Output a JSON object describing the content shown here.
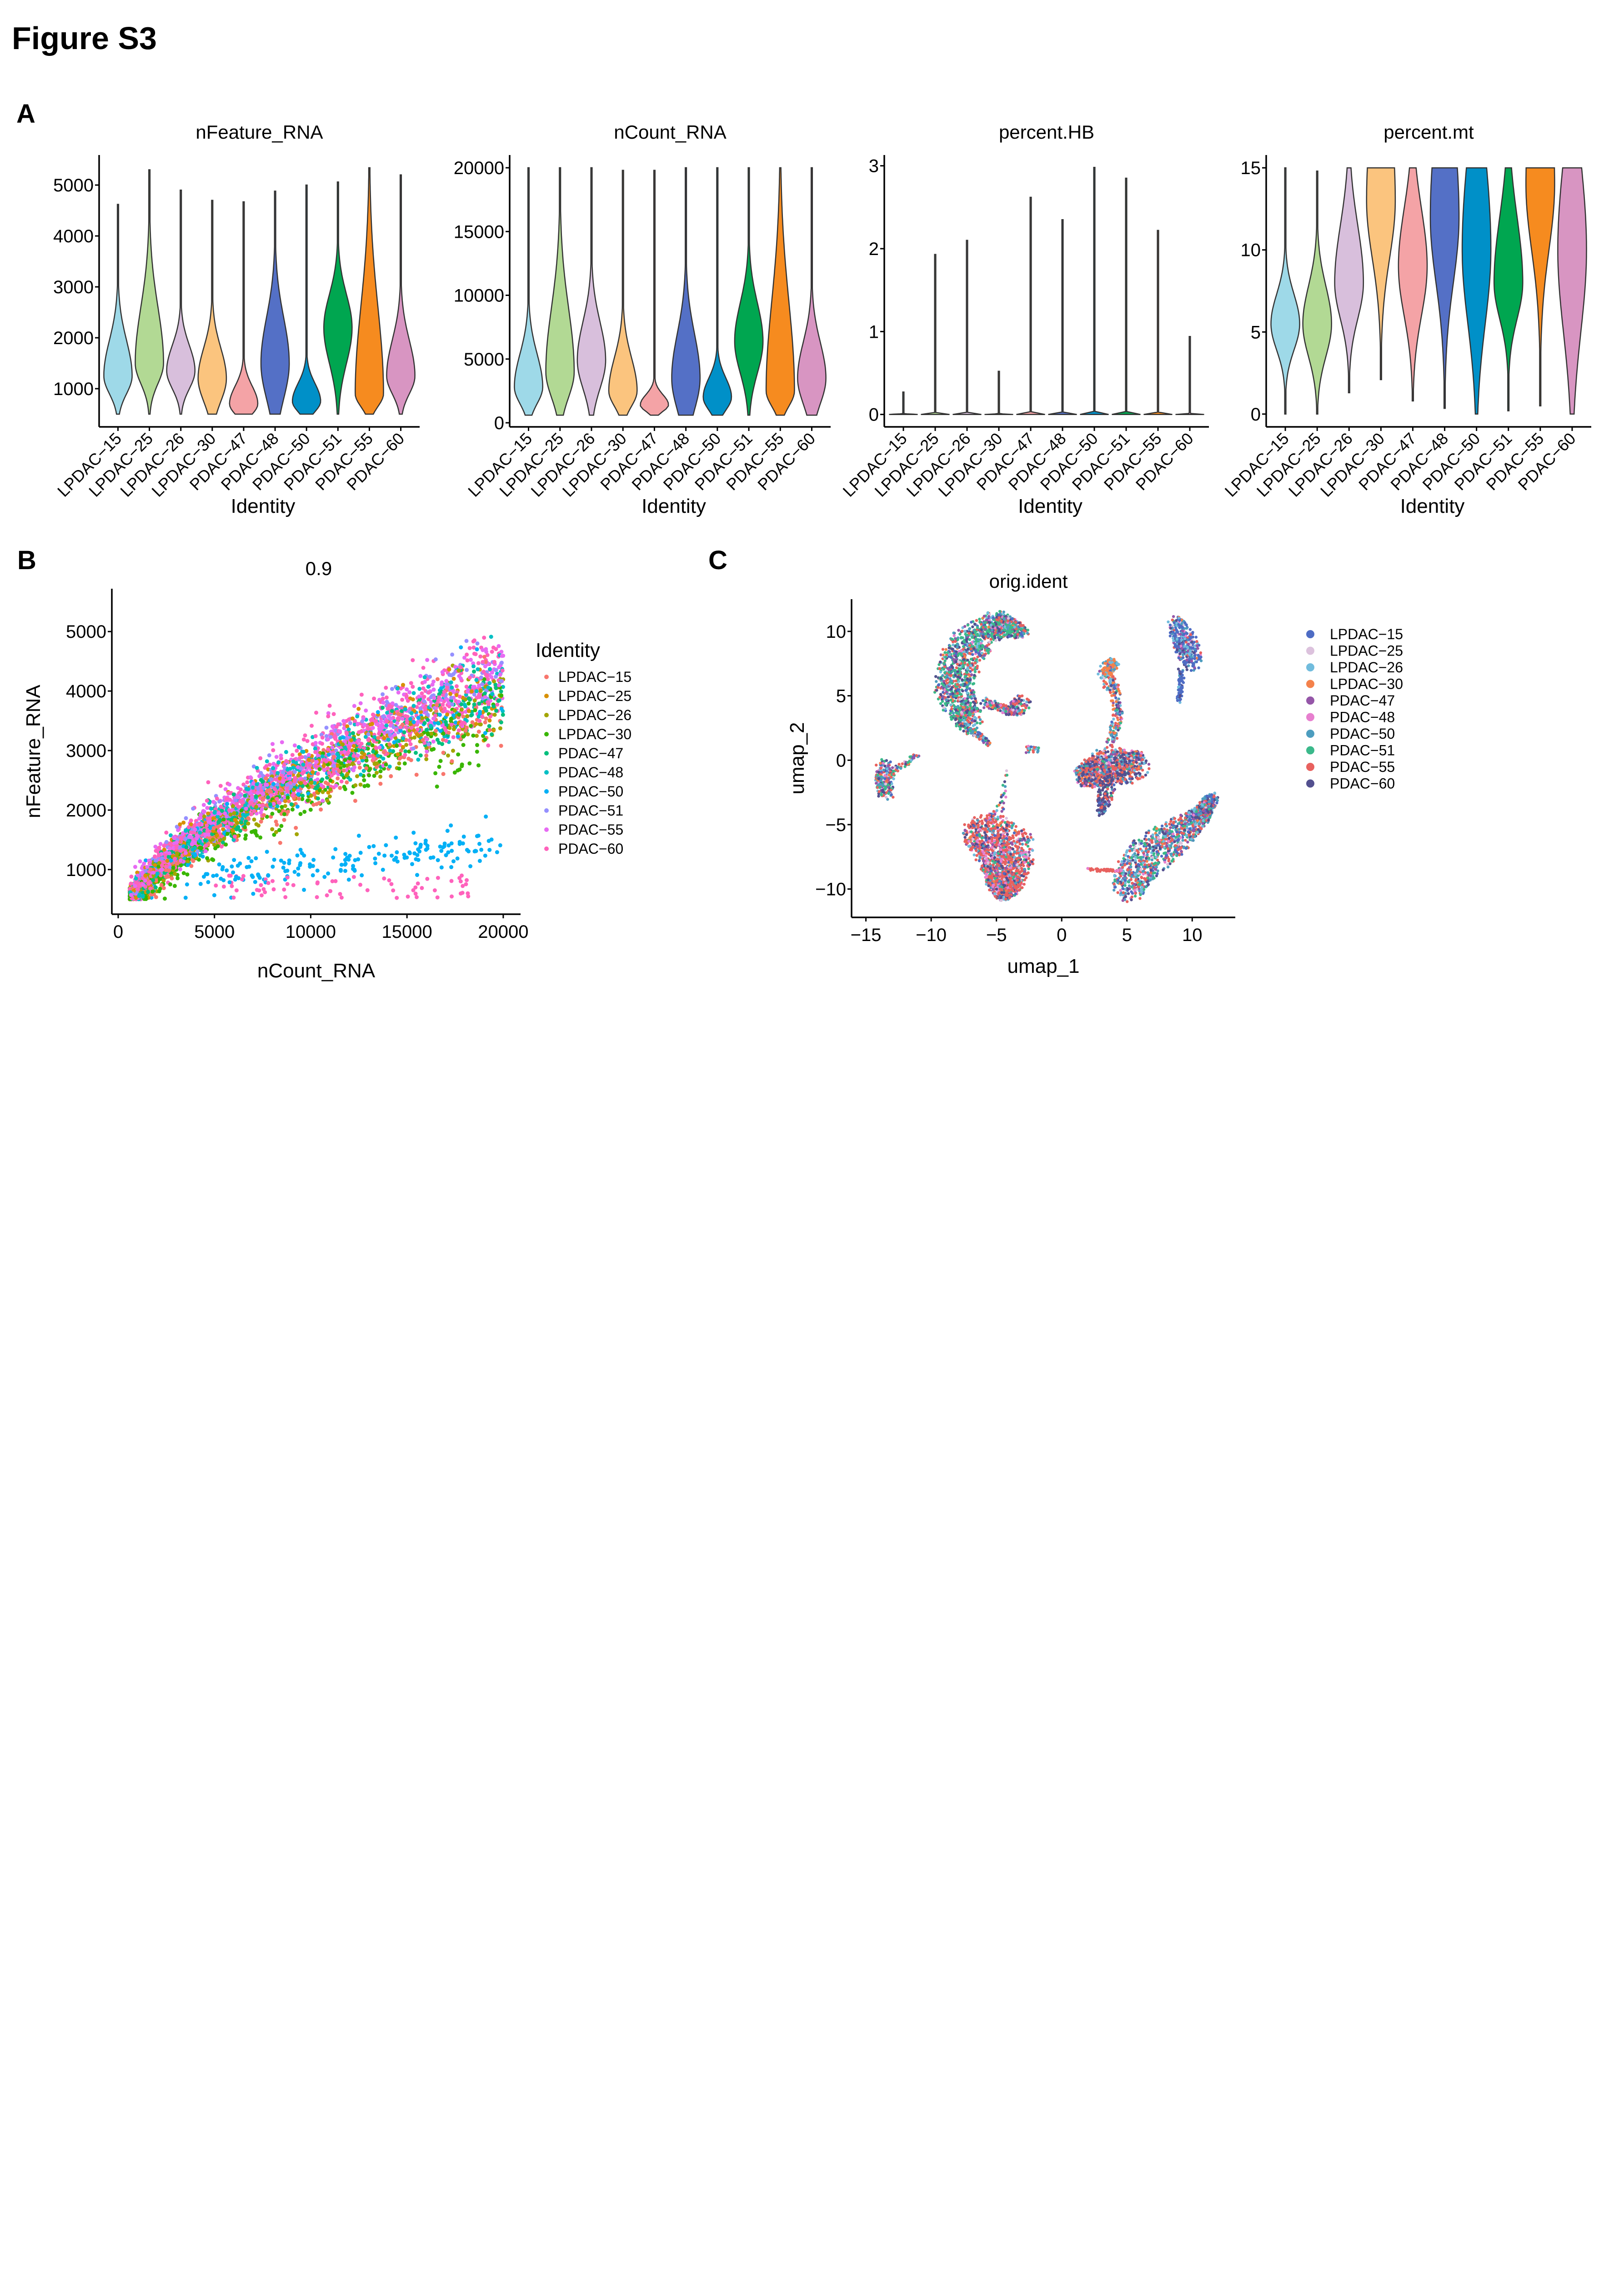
{
  "figure_title": "Figure S3",
  "panel_labels": {
    "a": "A",
    "b": "B",
    "c": "C"
  },
  "chart_data": [
    {
      "type": "violin",
      "title": "nFeature_RNA",
      "xlabel": "Identity",
      "categories": [
        "LPDAC−15",
        "LPDAC−25",
        "LPDAC−26",
        "LPDAC−30",
        "PDAC−47",
        "PDAC−48",
        "PDAC−50",
        "PDAC−51",
        "PDAC−55",
        "PDAC−60"
      ],
      "yticks": [
        1000,
        2000,
        3000,
        4000,
        5000
      ],
      "ylim": [
        250,
        5590
      ],
      "colors": [
        "#9ED9E8",
        "#B2D994",
        "#D8BFDC",
        "#FBC47E",
        "#F4A3A6",
        "#5470C6",
        "#0090C8",
        "#00A650",
        "#F68B1F",
        "#D895C2"
      ],
      "violins": [
        {
          "min": 500,
          "max": 4620,
          "mode": 1250,
          "spread": [
            350,
            700
          ]
        },
        {
          "min": 500,
          "max": 5300,
          "mode": 1500,
          "spread": [
            400,
            1100
          ]
        },
        {
          "min": 500,
          "max": 4900,
          "mode": 1350,
          "spread": [
            350,
            500
          ]
        },
        {
          "min": 500,
          "max": 4700,
          "mode": 1200,
          "spread": [
            450,
            600
          ]
        },
        {
          "min": 500,
          "max": 4670,
          "mode": 700,
          "spread": [
            200,
            350
          ]
        },
        {
          "min": 500,
          "max": 4880,
          "mode": 1500,
          "spread": [
            700,
            900
          ]
        },
        {
          "min": 500,
          "max": 5000,
          "mode": 750,
          "spread": [
            200,
            350
          ]
        },
        {
          "min": 500,
          "max": 5060,
          "mode": 2200,
          "spread": [
            700,
            650
          ]
        },
        {
          "min": 500,
          "max": 5340,
          "mode": 900,
          "spread": [
            250,
            1700
          ]
        },
        {
          "min": 500,
          "max": 5200,
          "mode": 1250,
          "spread": [
            350,
            700
          ]
        }
      ]
    },
    {
      "type": "violin",
      "title": "nCount_RNA",
      "xlabel": "Identity",
      "categories": [
        "LPDAC−15",
        "LPDAC−25",
        "LPDAC−26",
        "LPDAC−30",
        "PDAC−47",
        "PDAC−48",
        "PDAC−50",
        "PDAC−51",
        "PDAC−55",
        "PDAC−60"
      ],
      "yticks": [
        0,
        5000,
        10000,
        15000,
        20000
      ],
      "ylim": [
        -320,
        21000
      ],
      "colors": [
        "#9ED9E8",
        "#B2D994",
        "#D8BFDC",
        "#FBC47E",
        "#F4A3A6",
        "#5470C6",
        "#0090C8",
        "#00A650",
        "#F68B1F",
        "#D895C2"
      ],
      "violins": [
        {
          "min": 600,
          "max": 20000,
          "mode": 2800,
          "spread": [
            1300,
            2600
          ]
        },
        {
          "min": 600,
          "max": 20000,
          "mode": 4000,
          "spread": [
            2000,
            5000
          ]
        },
        {
          "min": 600,
          "max": 20000,
          "mode": 4900,
          "spread": [
            2200,
            3000
          ]
        },
        {
          "min": 600,
          "max": 19800,
          "mode": 2500,
          "spread": [
            1200,
            2600
          ]
        },
        {
          "min": 600,
          "max": 19800,
          "mode": 1400,
          "spread": [
            500,
            800
          ]
        },
        {
          "min": 600,
          "max": 20000,
          "mode": 3500,
          "spread": [
            2500,
            3500
          ]
        },
        {
          "min": 600,
          "max": 20000,
          "mode": 2000,
          "spread": [
            1000,
            1500
          ]
        },
        {
          "min": 600,
          "max": 20000,
          "mode": 6400,
          "spread": [
            2500,
            3000
          ]
        },
        {
          "min": 600,
          "max": 20000,
          "mode": 2500,
          "spread": [
            1200,
            7000
          ]
        },
        {
          "min": 600,
          "max": 20000,
          "mode": 3500,
          "spread": [
            2000,
            2800
          ]
        }
      ]
    },
    {
      "type": "violin",
      "title": "percent.HB",
      "xlabel": "Identity",
      "categories": [
        "LPDAC−15",
        "LPDAC−25",
        "LPDAC−26",
        "LPDAC−30",
        "PDAC−47",
        "PDAC−48",
        "PDAC−50",
        "PDAC−51",
        "PDAC−55",
        "PDAC−60"
      ],
      "yticks": [
        0,
        1,
        2,
        3
      ],
      "ylim": [
        -0.15,
        3.13
      ],
      "colors": [
        "#9ED9E8",
        "#B2D994",
        "#D8BFDC",
        "#FBC47E",
        "#F4A3A6",
        "#5470C6",
        "#0090C8",
        "#00A650",
        "#F68B1F",
        "#D895C2"
      ],
      "violins": [
        {
          "min": 0,
          "max": 0.27,
          "mode": 0,
          "spread": [
            0.004,
            0.004
          ]
        },
        {
          "min": 0,
          "max": 1.93,
          "mode": 0,
          "spread": [
            0.006,
            0.006
          ]
        },
        {
          "min": 0,
          "max": 2.1,
          "mode": 0,
          "spread": [
            0.005,
            0.005
          ]
        },
        {
          "min": 0,
          "max": 0.52,
          "mode": 0,
          "spread": [
            0.004,
            0.004
          ]
        },
        {
          "min": 0,
          "max": 2.62,
          "mode": 0,
          "spread": [
            0.005,
            0.005
          ]
        },
        {
          "min": 0,
          "max": 2.35,
          "mode": 0,
          "spread": [
            0.005,
            0.005
          ]
        },
        {
          "min": 0,
          "max": 2.98,
          "mode": 0,
          "spread": [
            0.005,
            0.005
          ]
        },
        {
          "min": 0,
          "max": 2.85,
          "mode": 0,
          "spread": [
            0.006,
            0.006
          ]
        },
        {
          "min": 0,
          "max": 2.22,
          "mode": 0,
          "spread": [
            0.005,
            0.005
          ]
        },
        {
          "min": 0,
          "max": 0.94,
          "mode": 0,
          "spread": [
            0.005,
            0.005
          ]
        }
      ]
    },
    {
      "type": "violin",
      "title": "percent.mt",
      "xlabel": "Identity",
      "categories": [
        "LPDAC−15",
        "LPDAC−25",
        "LPDAC−26",
        "LPDAC−30",
        "PDAC−47",
        "PDAC−48",
        "PDAC−50",
        "PDAC−51",
        "PDAC−55",
        "PDAC−60"
      ],
      "yticks": [
        0,
        5,
        10,
        15
      ],
      "ylim": [
        -0.78,
        15.78
      ],
      "colors": [
        "#9ED9E8",
        "#B2D994",
        "#D8BFDC",
        "#FBC47E",
        "#F4A3A6",
        "#5470C6",
        "#0090C8",
        "#00A650",
        "#F68B1F",
        "#D895C2"
      ],
      "violins": [
        {
          "min": 0,
          "max": 15,
          "mode": 5.5,
          "spread": [
            1.6,
            1.8
          ]
        },
        {
          "min": 0,
          "max": 14.8,
          "mode": 5.5,
          "spread": [
            2.0,
            2.3
          ]
        },
        {
          "min": 1.3,
          "max": 15,
          "mode": 8.0,
          "spread": [
            2.2,
            3.5
          ]
        },
        {
          "min": 2.1,
          "max": 15,
          "mode": 13.0,
          "spread": [
            3.5,
            6.0
          ]
        },
        {
          "min": 0.8,
          "max": 15,
          "mode": 9.0,
          "spread": [
            3.0,
            3.5
          ]
        },
        {
          "min": 0.35,
          "max": 15,
          "mode": 12.0,
          "spread": [
            4.0,
            6.0
          ]
        },
        {
          "min": 0,
          "max": 15,
          "mode": 10.0,
          "spread": [
            4.5,
            6.0
          ]
        },
        {
          "min": 0.2,
          "max": 15,
          "mode": 8.0,
          "spread": [
            2.2,
            4.0
          ]
        },
        {
          "min": 0.5,
          "max": 15,
          "mode": 14.0,
          "spread": [
            4.0,
            6.0
          ]
        },
        {
          "min": 0,
          "max": 15,
          "mode": 10.0,
          "spread": [
            5.0,
            5.5
          ]
        }
      ]
    },
    {
      "type": "scatter",
      "title": "0.9",
      "xlabel": "nCount_RNA",
      "ylabel": "nFeature_RNA",
      "xticks": [
        0,
        5000,
        10000,
        15000,
        20000
      ],
      "yticks": [
        1000,
        2000,
        3000,
        4000,
        5000
      ],
      "xlim": [
        -330,
        20900
      ],
      "ylim": [
        250,
        5720
      ],
      "legend_title": "Identity",
      "legend_position": "right",
      "series": [
        {
          "name": "LPDAC−15",
          "color": "#F8766D"
        },
        {
          "name": "LPDAC−25",
          "color": "#D89000"
        },
        {
          "name": "LPDAC−26",
          "color": "#A3A500"
        },
        {
          "name": "LPDAC−30",
          "color": "#39B600"
        },
        {
          "name": "PDAC−47",
          "color": "#00BF7D"
        },
        {
          "name": "PDAC−48",
          "color": "#00BFC4"
        },
        {
          "name": "PDAC−50",
          "color": "#00B0F6"
        },
        {
          "name": "PDAC−51",
          "color": "#9590FF"
        },
        {
          "name": "PDAC−55",
          "color": "#E76BF3"
        },
        {
          "name": "PDAC−60",
          "color": "#FF62BC"
        }
      ]
    },
    {
      "type": "scatter",
      "title": "orig.ident",
      "xlabel": "umap_1",
      "ylabel": "umap_2",
      "xticks": [
        -15,
        -10,
        -5,
        0,
        5,
        10
      ],
      "yticks": [
        -10,
        -5,
        0,
        5,
        10
      ],
      "xlim": [
        -16.1,
        13.3
      ],
      "ylim": [
        -12.2,
        12.5
      ],
      "legend_position": "right",
      "series": [
        {
          "name": "LPDAC−15",
          "color": "#4E6CC4"
        },
        {
          "name": "LPDAC−25",
          "color": "#DCC2DD"
        },
        {
          "name": "LPDAC−26",
          "color": "#71BCDD"
        },
        {
          "name": "LPDAC−30",
          "color": "#F4824B"
        },
        {
          "name": "PDAC−47",
          "color": "#9556A8"
        },
        {
          "name": "PDAC−48",
          "color": "#E77FCF"
        },
        {
          "name": "PDAC−50",
          "color": "#4D9DBF"
        },
        {
          "name": "PDAC−51",
          "color": "#3BB98B"
        },
        {
          "name": "PDAC−55",
          "color": "#E8615E"
        },
        {
          "name": "PDAC−60",
          "color": "#53508F"
        }
      ]
    }
  ]
}
